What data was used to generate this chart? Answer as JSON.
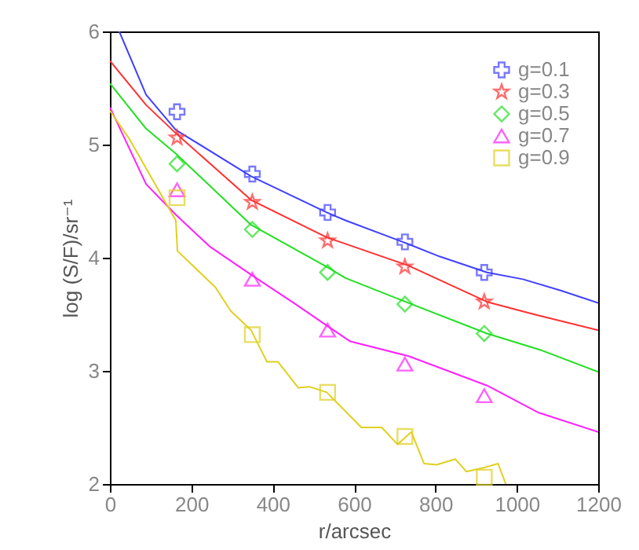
{
  "chart_data": {
    "type": "line",
    "xlabel": "r/arcsec",
    "ylabel": "log (S/F)/sr⁻¹",
    "xlim": [
      0,
      1200
    ],
    "ylim": [
      2,
      6
    ],
    "xticks": [
      0,
      200,
      400,
      600,
      800,
      1000,
      1200
    ],
    "yticks": [
      2,
      3,
      4,
      5,
      6
    ],
    "legend": "top right",
    "grid": false,
    "series": [
      {
        "type": "line",
        "color": "#4040ff",
        "x": [
          23,
          89,
          162,
          347,
          533,
          579,
          734,
          811,
          927,
          1015,
          1108,
          1200
        ],
        "values": [
          6.0,
          5.44,
          5.13,
          4.72,
          4.4,
          4.33,
          4.12,
          4.01,
          3.87,
          3.81,
          3.71,
          3.6
        ]
      },
      {
        "type": "line",
        "color": "#ff3030",
        "x": [
          0,
          89,
          162,
          347,
          533,
          734,
          927,
          1042,
          1200
        ],
        "values": [
          5.74,
          5.35,
          5.1,
          4.51,
          4.18,
          3.93,
          3.61,
          3.5,
          3.36
        ]
      },
      {
        "type": "line",
        "color": "#20e020",
        "x": [
          0,
          89,
          162,
          347,
          533,
          579,
          734,
          927,
          1062,
          1200
        ],
        "values": [
          5.54,
          5.14,
          4.92,
          4.29,
          3.92,
          3.82,
          3.6,
          3.33,
          3.18,
          2.99
        ]
      },
      {
        "type": "line",
        "color": "#ff20ff",
        "x": [
          0,
          89,
          162,
          245,
          347,
          452,
          533,
          591,
          734,
          927,
          1054,
          1200
        ],
        "values": [
          5.33,
          4.65,
          4.38,
          4.1,
          3.85,
          3.6,
          3.4,
          3.26,
          3.13,
          2.87,
          2.63,
          2.46
        ]
      },
      {
        "type": "line",
        "color": "#e0d020",
        "x": [
          0,
          46,
          162,
          166,
          259,
          297,
          347,
          386,
          413,
          463,
          490,
          533,
          618,
          668,
          707,
          741,
          772,
          803,
          849,
          876,
          915,
          954,
          973
        ],
        "values": [
          5.3,
          5.06,
          4.33,
          4.06,
          3.74,
          3.53,
          3.36,
          3.08,
          3.08,
          2.85,
          2.86,
          2.81,
          2.5,
          2.5,
          2.35,
          2.46,
          2.18,
          2.17,
          2.22,
          2.11,
          2.14,
          2.18,
          2.0
        ]
      },
      {
        "type": "scatter",
        "name": "g=0.1",
        "color": "#4040ff",
        "marker": "cross",
        "x": [
          165,
          350,
          535,
          725,
          920
        ],
        "values": [
          5.29,
          4.74,
          4.4,
          4.14,
          3.87
        ]
      },
      {
        "type": "scatter",
        "name": "g=0.3",
        "color": "#ff3030",
        "marker": "star",
        "x": [
          165,
          350,
          535,
          725,
          920
        ],
        "values": [
          5.06,
          4.49,
          4.15,
          3.92,
          3.61
        ]
      },
      {
        "type": "scatter",
        "name": "g=0.5",
        "color": "#20e020",
        "marker": "diamond",
        "x": [
          165,
          350,
          535,
          725,
          920
        ],
        "values": [
          4.83,
          4.25,
          3.87,
          3.59,
          3.33
        ]
      },
      {
        "type": "scatter",
        "name": "g=0.7",
        "color": "#ff20ff",
        "marker": "triangle",
        "x": [
          165,
          350,
          535,
          725,
          920
        ],
        "values": [
          4.6,
          3.81,
          3.36,
          3.06,
          2.78
        ]
      },
      {
        "type": "scatter",
        "name": "g=0.9",
        "color": "#e0d020",
        "marker": "square",
        "x": [
          165,
          350,
          535,
          725,
          920
        ],
        "values": [
          4.53,
          3.32,
          2.81,
          2.42,
          2.06
        ]
      }
    ]
  }
}
